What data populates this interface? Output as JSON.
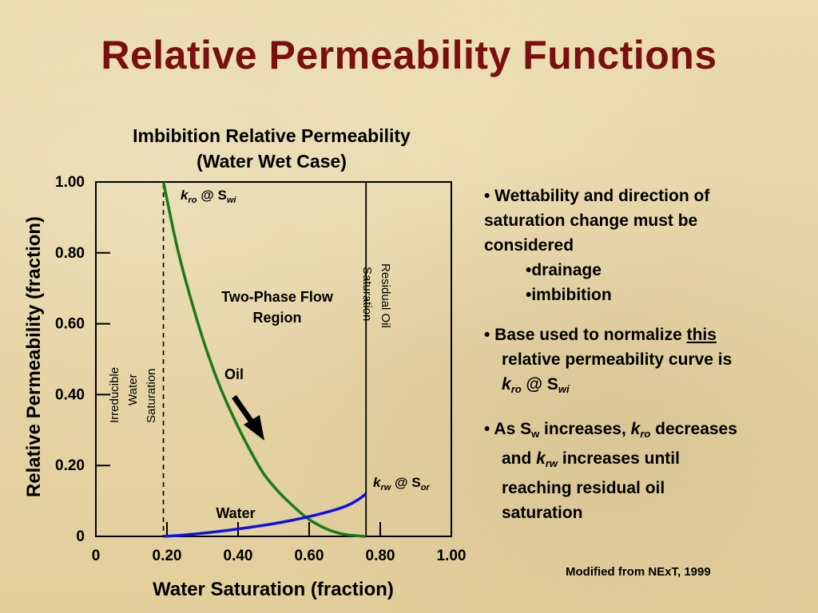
{
  "title": "Relative Permeability Functions",
  "chart_data": {
    "type": "line",
    "title_line1": "Imbibition Relative Permeability",
    "title_line2": "(Water Wet Case)",
    "xlabel": "Water Saturation (fraction)",
    "ylabel": "Relative Permeability (fraction)",
    "xlim": [
      0,
      1.0
    ],
    "ylim": [
      0,
      1.0
    ],
    "x_ticks": [
      0,
      0.2,
      0.4,
      0.6,
      0.8,
      1.0
    ],
    "x_tick_labels": [
      "0",
      "0.20",
      "0.40",
      "0.60",
      "0.80",
      "1.00"
    ],
    "y_ticks": [
      0,
      0.2,
      0.4,
      0.6,
      0.8,
      1.0
    ],
    "y_tick_labels": [
      "0",
      "0.20",
      "0.40",
      "0.60",
      "0.80",
      "1.00"
    ],
    "series": [
      {
        "name": "Oil",
        "color": "#1a7a1a",
        "x": [
          0.19,
          0.23,
          0.27,
          0.31,
          0.35,
          0.39,
          0.43,
          0.47,
          0.51,
          0.55,
          0.59,
          0.63,
          0.67,
          0.71,
          0.76
        ],
        "y": [
          1.0,
          0.81,
          0.66,
          0.53,
          0.42,
          0.33,
          0.25,
          0.18,
          0.13,
          0.09,
          0.055,
          0.03,
          0.013,
          0.004,
          0.0
        ]
      },
      {
        "name": "Water",
        "color": "#1010e0",
        "x": [
          0.19,
          0.25,
          0.31,
          0.37,
          0.43,
          0.49,
          0.55,
          0.61,
          0.67,
          0.71,
          0.74,
          0.76
        ],
        "y": [
          0.0,
          0.004,
          0.01,
          0.017,
          0.025,
          0.034,
          0.045,
          0.058,
          0.074,
          0.088,
          0.105,
          0.12
        ]
      }
    ],
    "vlines": [
      {
        "x": 0.19,
        "style": "dashed",
        "label_lines": [
          "Irreducible",
          "Water",
          "Saturation"
        ]
      },
      {
        "x": 0.76,
        "style": "solid",
        "label_lines": [
          "Residual Oil",
          "Saturation"
        ]
      }
    ],
    "annotations": {
      "kro_main": "k",
      "kro_sub": "ro",
      "kro_at": " @ S",
      "kro_at_sub": "wi",
      "krw_main": "k",
      "krw_sub": "rw",
      "krw_at": " @ S",
      "krw_at_sub": "or",
      "region_line1": "Two-Phase Flow",
      "region_line2": "Region",
      "oil_label": "Oil",
      "water_label": "Water"
    }
  },
  "bullets": {
    "b1_line1": "• Wettability and direction of",
    "b1_line2": "saturation change must be",
    "b1_line3": "considered",
    "b1_sub1": "•drainage",
    "b1_sub2": "•imbibition",
    "b2_pre": "• Base used to normalize ",
    "b2_underline": "this",
    "b2_line2": "relative permeability curve is",
    "b2_k": "k",
    "b2_k_sub": "ro",
    "b2_at": " @ S",
    "b2_at_sub": "wi",
    "b3_pre": "• As S",
    "b3_pre_sub": "w",
    "b3_mid": " increases, ",
    "b3_k1": "k",
    "b3_k1_sub": "ro",
    "b3_post": " decreases",
    "b3_l2_pre": "and ",
    "b3_k2": "k",
    "b3_k2_sub": "rw",
    "b3_l2_post": " increases until",
    "b3_line3": "reaching residual oil",
    "b3_line4": "saturation"
  },
  "source": "Modified from NExT, 1999"
}
